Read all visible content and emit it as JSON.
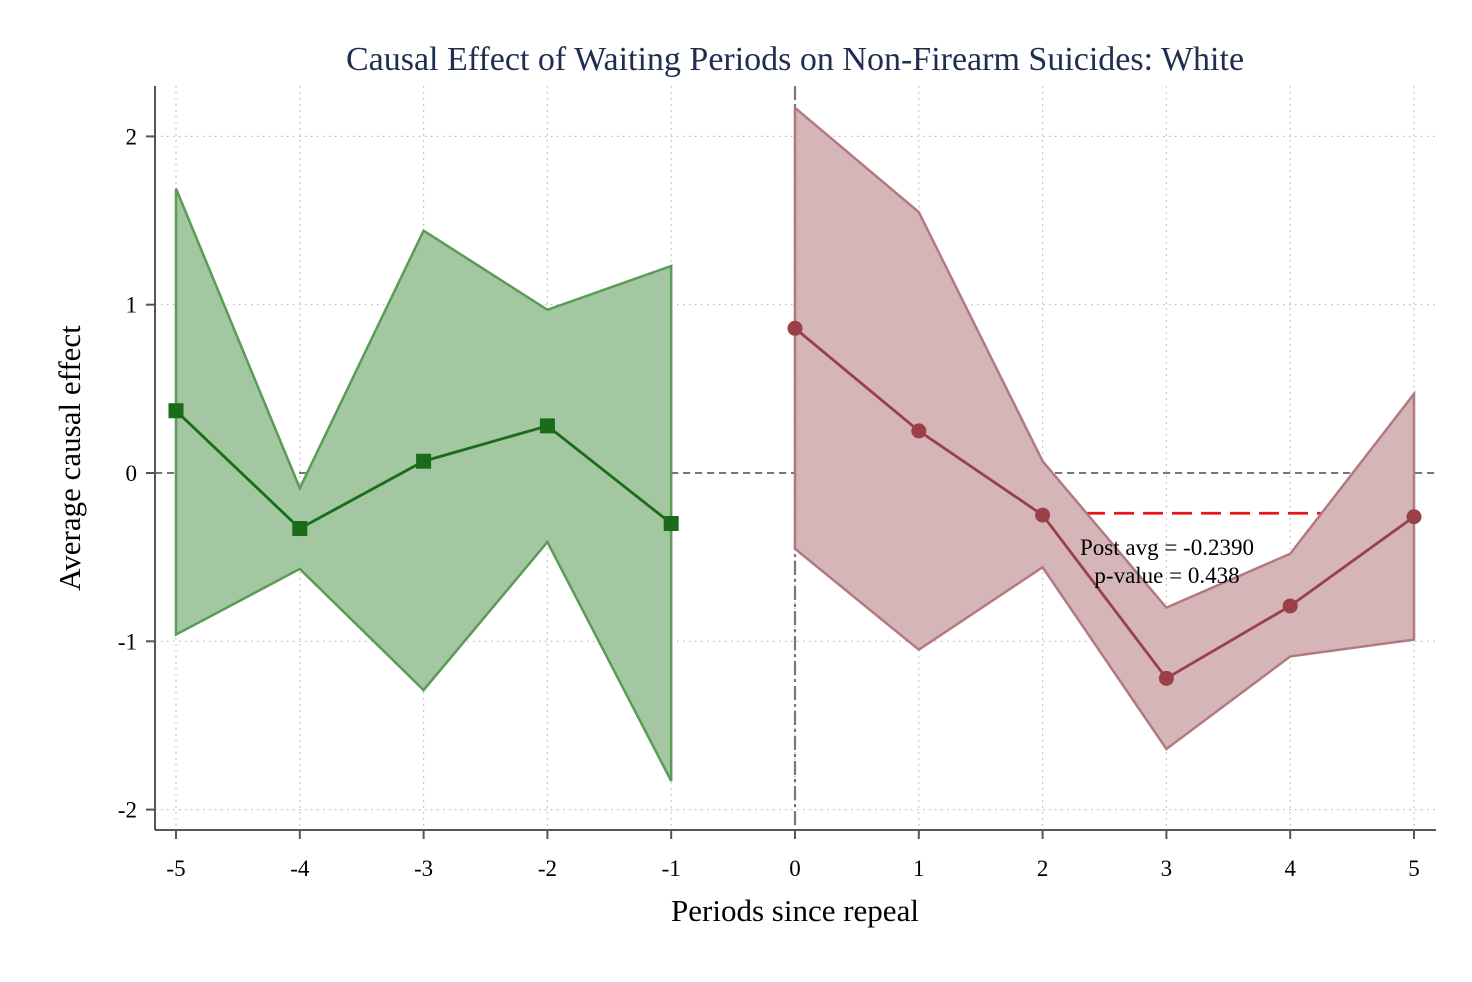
{
  "chart_data": {
    "type": "line",
    "title": "Causal Effect of Waiting Periods on Non-Firearm Suicides: White",
    "xlabel": "Periods since repeal",
    "ylabel": "Average causal effect",
    "xlim": [
      -5,
      5
    ],
    "ylim": [
      -2.1,
      2.3
    ],
    "x_ticks": [
      "-5",
      "-4",
      "-3",
      "-2",
      "-1",
      "0",
      "1",
      "2",
      "3",
      "4",
      "5"
    ],
    "y_ticks": [
      "2",
      "1",
      "0",
      "-1",
      "-2"
    ],
    "grid": true,
    "series": [
      {
        "role": "pre-period",
        "color": "#1a6b1a",
        "band_color": "#a3c7a0",
        "band_edge": "#5c9a58",
        "marker": "square",
        "x": [
          -5,
          -4,
          -3,
          -2,
          -1
        ],
        "y": [
          0.37,
          -0.33,
          0.07,
          0.28,
          -0.3
        ],
        "ci_low": [
          -0.96,
          -0.57,
          -1.29,
          -0.41,
          -1.83
        ],
        "ci_high": [
          1.69,
          -0.09,
          1.44,
          0.97,
          1.23
        ]
      },
      {
        "role": "post-period",
        "color": "#9a4048",
        "band_color": "#d6b5b8",
        "band_edge": "#b27a80",
        "marker": "circle",
        "x": [
          0,
          1,
          2,
          3,
          4,
          5
        ],
        "y": [
          0.86,
          0.25,
          -0.25,
          -1.22,
          -0.79,
          -0.26
        ],
        "ci_low": [
          -0.45,
          -1.05,
          -0.56,
          -1.64,
          -1.09,
          -0.99
        ],
        "ci_high": [
          2.17,
          1.55,
          0.07,
          -0.8,
          -0.48,
          0.47
        ]
      }
    ],
    "reference_lines": {
      "zero_line_y": 0,
      "treatment_line_x": 0,
      "post_avg_y": -0.239,
      "post_avg_color": "#e8141c"
    },
    "annotations": [
      "Post avg = -0.2390",
      "p-value = 0.438"
    ]
  }
}
